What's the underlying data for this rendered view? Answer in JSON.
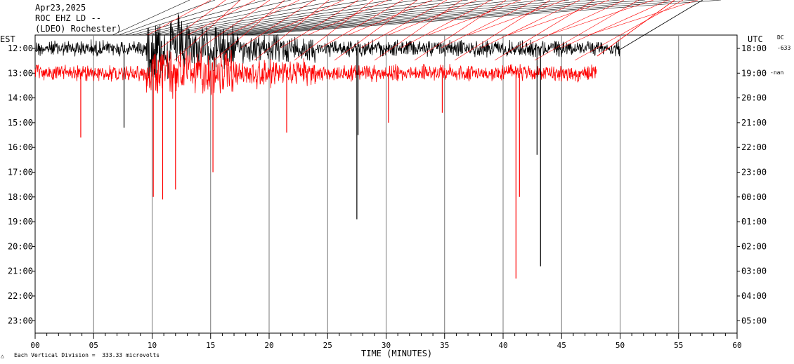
{
  "header": {
    "date": "Apr23,2025",
    "station": "ROC EHZ LD --",
    "network": "(LDEO) Rochester)"
  },
  "left_axis_title": "EST",
  "right_axis_title": "UTC",
  "dc_label": "DC",
  "dc_value": "-633",
  "dc_value2": "-nan",
  "footer_scale": "Each Vertical Division =  333.33 microvolts",
  "footer_mark": "△",
  "trace_colors": [
    "#000000",
    "#ff0000"
  ],
  "chart_data": {
    "type": "line",
    "title": "",
    "xlabel": "TIME (MINUTES)",
    "ylabel": "",
    "xlim": [
      0,
      60
    ],
    "x_ticks": [
      "00",
      "05",
      "10",
      "15",
      "20",
      "25",
      "30",
      "35",
      "40",
      "45",
      "50",
      "55",
      "60"
    ],
    "x_tick_values": [
      0,
      5,
      10,
      15,
      20,
      25,
      30,
      35,
      40,
      45,
      50,
      55,
      60
    ],
    "left_ticks": [
      "12:00",
      "13:00",
      "14:00",
      "15:00",
      "16:00",
      "17:00",
      "18:00",
      "19:00",
      "20:00",
      "21:00",
      "22:00",
      "23:00"
    ],
    "right_ticks": [
      "18:00",
      "19:00",
      "20:00",
      "21:00",
      "22:00",
      "23:00",
      "00:00",
      "01:00",
      "02:00",
      "03:00",
      "04:00",
      "05:00"
    ],
    "grid": "vertical every 5 minutes",
    "rows": [
      {
        "hour_est": "12:00",
        "color": "#000000",
        "end_minute": 50
      },
      {
        "hour_est": "13:00",
        "color": "#ff0000",
        "end_minute": 48
      }
    ],
    "spikes": [
      {
        "minute": 3.9,
        "row": 1,
        "color": "#ff0000",
        "down_to_hour_offset": 2.6
      },
      {
        "minute": 7.6,
        "row": 0,
        "color": "#000000",
        "down_to_hour_offset": 3.2
      },
      {
        "minute": 10.1,
        "row": 1,
        "color": "#ff0000",
        "down_to_hour_offset": 5.0
      },
      {
        "minute": 10.9,
        "row": 1,
        "color": "#ff0000",
        "down_to_hour_offset": 5.1
      },
      {
        "minute": 12.0,
        "row": 1,
        "color": "#ff0000",
        "down_to_hour_offset": 4.7
      },
      {
        "minute": 15.2,
        "row": 1,
        "color": "#ff0000",
        "down_to_hour_offset": 4.0
      },
      {
        "minute": 21.5,
        "row": 1,
        "color": "#ff0000",
        "down_to_hour_offset": 2.4
      },
      {
        "minute": 27.5,
        "row": 0,
        "color": "#000000",
        "down_to_hour_offset": 6.9
      },
      {
        "minute": 27.6,
        "row": 0,
        "color": "#000000",
        "down_to_hour_offset": 3.5
      },
      {
        "minute": 30.2,
        "row": 1,
        "color": "#ff0000",
        "down_to_hour_offset": 2.0
      },
      {
        "minute": 34.8,
        "row": 1,
        "color": "#ff0000",
        "down_to_hour_offset": 1.6
      },
      {
        "minute": 41.1,
        "row": 1,
        "color": "#ff0000",
        "down_to_hour_offset": 8.3
      },
      {
        "minute": 41.4,
        "row": 1,
        "color": "#ff0000",
        "down_to_hour_offset": 5.0
      },
      {
        "minute": 42.9,
        "row": 0,
        "color": "#000000",
        "down_to_hour_offset": 4.3
      },
      {
        "minute": 43.2,
        "row": 0,
        "color": "#000000",
        "down_to_hour_offset": 8.8
      }
    ]
  }
}
